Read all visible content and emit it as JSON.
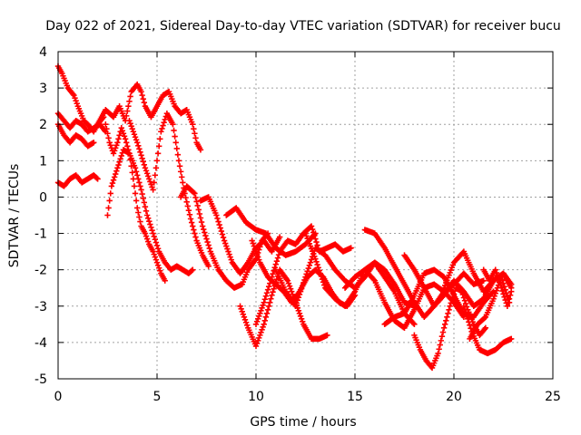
{
  "chart_data": {
    "type": "scatter",
    "title": "Day 022 of 2021, Sidereal Day-to-day VTEC variation (SDTVAR) for receiver bucu",
    "xlabel": "GPS time / hours",
    "ylabel": "SDTVAR / TECUs",
    "xlim": [
      0,
      25
    ],
    "ylim": [
      -5,
      4
    ],
    "x_ticks": [
      0,
      5,
      10,
      15,
      20,
      25
    ],
    "y_ticks": [
      -5,
      -4,
      -3,
      -2,
      -1,
      0,
      1,
      2,
      3,
      4
    ],
    "x_tick_labels": [
      "0",
      "5",
      "10",
      "15",
      "20",
      "25"
    ],
    "y_tick_labels": [
      "-5",
      "-4",
      "-3",
      "-2",
      "-1",
      "0",
      "1",
      "2",
      "3",
      "4"
    ],
    "grid": true,
    "marker": "plus",
    "color": "#ff0000",
    "series": [
      {
        "x": [
          0.0,
          0.2,
          0.5,
          0.8,
          1.0,
          1.3,
          1.5,
          1.8,
          2.0,
          2.3
        ],
        "y": [
          3.6,
          3.4,
          3.0,
          2.8,
          2.5,
          2.1,
          2.0,
          1.8,
          2.0,
          2.2
        ]
      },
      {
        "x": [
          0.0,
          0.3,
          0.6,
          0.9,
          1.2,
          1.5,
          1.8,
          2.1,
          2.4
        ],
        "y": [
          2.3,
          2.1,
          1.9,
          2.1,
          2.0,
          1.8,
          1.9,
          2.0,
          1.8
        ]
      },
      {
        "x": [
          0.0,
          0.3,
          0.6,
          0.9,
          1.2,
          1.5,
          1.8
        ],
        "y": [
          2.0,
          1.7,
          1.5,
          1.7,
          1.6,
          1.4,
          1.5
        ]
      },
      {
        "x": [
          0.0,
          0.3,
          0.6,
          0.9,
          1.2,
          1.5,
          1.8,
          2.0
        ],
        "y": [
          0.4,
          0.3,
          0.5,
          0.6,
          0.4,
          0.5,
          0.6,
          0.5
        ]
      },
      {
        "x": [
          2.0,
          2.4,
          2.8,
          3.1,
          3.4,
          3.7,
          4.0,
          4.2,
          4.4,
          4.7,
          5.0,
          5.3,
          5.6,
          5.9,
          6.2,
          6.5,
          6.8,
          7.0,
          7.2
        ],
        "y": [
          2.0,
          2.4,
          2.2,
          2.5,
          2.1,
          2.9,
          3.1,
          2.9,
          2.5,
          2.2,
          2.5,
          2.8,
          2.9,
          2.5,
          2.3,
          2.4,
          2.0,
          1.5,
          1.3
        ]
      },
      {
        "x": [
          2.4,
          2.6,
          2.8,
          3.0,
          3.2,
          3.4,
          3.6,
          3.8,
          4.0,
          4.2,
          4.4,
          4.6,
          4.8,
          5.0,
          5.2,
          5.4
        ],
        "y": [
          2.0,
          1.5,
          1.2,
          1.5,
          1.9,
          1.6,
          1.2,
          0.5,
          -0.3,
          -0.8,
          -1.0,
          -1.3,
          -1.5,
          -1.8,
          -2.1,
          -2.3
        ]
      },
      {
        "x": [
          2.5,
          2.7,
          3.0,
          3.3,
          3.6,
          3.9,
          4.2,
          4.5,
          4.8,
          5.1,
          5.4,
          5.7,
          6.0,
          6.3,
          6.6,
          6.8
        ],
        "y": [
          -0.5,
          0.3,
          0.8,
          1.3,
          1.2,
          0.8,
          0.2,
          -0.5,
          -1.0,
          -1.5,
          -1.8,
          -2.0,
          -1.9,
          -2.0,
          -2.1,
          -2.0
        ]
      },
      {
        "x": [
          3.6,
          4.0,
          4.4,
          4.8,
          5.2,
          5.5,
          5.8,
          6.1,
          6.4,
          6.7,
          7.0,
          7.3,
          7.6
        ],
        "y": [
          2.1,
          1.5,
          0.8,
          0.2,
          1.8,
          2.3,
          2.0,
          1.0,
          0.1,
          -0.6,
          -1.2,
          -1.6,
          -1.9
        ]
      },
      {
        "x": [
          6.2,
          6.5,
          6.9,
          7.3,
          7.7,
          8.1,
          8.5,
          8.9,
          9.3,
          9.6,
          10.0,
          10.3,
          10.6
        ],
        "y": [
          0.0,
          0.3,
          0.1,
          -0.8,
          -1.5,
          -2.0,
          -2.3,
          -2.5,
          -2.4,
          -2.0,
          -1.7,
          -1.2,
          -1.0
        ]
      },
      {
        "x": [
          7.2,
          7.6,
          8.0,
          8.4,
          8.8,
          9.2,
          9.6,
          10.0,
          10.4,
          10.8,
          11.2
        ],
        "y": [
          -0.1,
          0.0,
          -0.5,
          -1.2,
          -1.8,
          -2.1,
          -1.8,
          -1.4,
          -1.2,
          -1.5,
          -1.1
        ]
      },
      {
        "x": [
          8.5,
          9.0,
          9.5,
          10.0,
          10.5,
          11.0,
          11.5,
          12.0,
          12.5,
          13.0
        ],
        "y": [
          -0.5,
          -0.3,
          -0.7,
          -0.9,
          -1.0,
          -1.4,
          -1.6,
          -1.5,
          -1.3,
          -1.0
        ]
      },
      {
        "x": [
          9.2,
          9.6,
          10.0,
          10.4,
          10.8,
          11.2,
          11.6,
          12.0,
          12.4,
          12.8,
          13.2,
          13.6
        ],
        "y": [
          -3.0,
          -3.6,
          -4.1,
          -3.5,
          -2.7,
          -2.0,
          -2.3,
          -2.9,
          -3.5,
          -3.9,
          -3.9,
          -3.8
        ]
      },
      {
        "x": [
          9.8,
          10.2,
          10.6,
          11.0,
          11.4,
          11.8,
          12.2,
          12.6,
          13.0,
          13.4,
          13.8,
          14.2,
          14.6,
          15.0
        ],
        "y": [
          -1.2,
          -1.8,
          -2.2,
          -2.4,
          -2.6,
          -2.9,
          -2.6,
          -2.2,
          -2.0,
          -2.2,
          -2.6,
          -2.9,
          -3.0,
          -2.7
        ]
      },
      {
        "x": [
          10.0,
          10.4,
          10.8,
          11.2,
          11.6,
          12.0,
          12.4,
          12.8,
          13.2,
          13.6,
          14.0,
          14.4,
          14.8
        ],
        "y": [
          -3.5,
          -2.9,
          -2.2,
          -1.5,
          -1.2,
          -1.3,
          -1.0,
          -0.8,
          -1.5,
          -1.4,
          -1.3,
          -1.5,
          -1.4
        ]
      },
      {
        "x": [
          11.0,
          11.5,
          12.0,
          12.5,
          13.0,
          13.5,
          14.0,
          14.5,
          15.0,
          15.5,
          16.0,
          16.5,
          17.0,
          17.5,
          18.0
        ],
        "y": [
          -2.0,
          -2.6,
          -3.0,
          -2.2,
          -1.4,
          -1.6,
          -2.0,
          -2.3,
          -2.5,
          -2.2,
          -1.8,
          -2.0,
          -2.4,
          -2.9,
          -3.0
        ]
      },
      {
        "x": [
          12.5,
          13.0,
          13.5,
          14.0,
          14.5,
          15.0,
          15.5,
          16.0,
          16.5,
          17.0,
          17.5,
          18.0
        ],
        "y": [
          -1.0,
          -1.7,
          -2.5,
          -2.8,
          -3.0,
          -2.6,
          -2.0,
          -1.8,
          -2.2,
          -2.6,
          -3.2,
          -3.5
        ]
      },
      {
        "x": [
          14.5,
          15.0,
          15.5,
          16.0,
          16.5,
          17.0,
          17.5,
          18.0,
          18.5,
          19.0,
          19.5,
          20.0,
          20.5
        ],
        "y": [
          -2.5,
          -2.2,
          -2.0,
          -2.3,
          -2.9,
          -3.4,
          -3.6,
          -3.1,
          -2.5,
          -2.4,
          -2.6,
          -2.9,
          -3.3
        ]
      },
      {
        "x": [
          15.5,
          16.0,
          16.5,
          17.0,
          17.5,
          18.0,
          18.5,
          19.0,
          19.5,
          20.0,
          20.5,
          21.0,
          21.5
        ],
        "y": [
          -0.9,
          -1.0,
          -1.4,
          -1.9,
          -2.4,
          -2.9,
          -3.3,
          -3.0,
          -2.6,
          -2.4,
          -2.1,
          -2.4,
          -2.3
        ]
      },
      {
        "x": [
          16.5,
          17.0,
          17.5,
          18.0,
          18.5,
          19.0,
          19.5,
          20.0,
          20.5,
          21.0,
          21.5,
          22.0
        ],
        "y": [
          -3.5,
          -3.3,
          -3.2,
          -2.7,
          -2.1,
          -2.0,
          -2.2,
          -2.7,
          -3.2,
          -3.3,
          -2.9,
          -2.6
        ]
      },
      {
        "x": [
          18.0,
          18.3,
          18.6,
          18.9,
          19.2,
          19.5,
          19.8,
          20.1,
          20.4,
          20.7,
          21.0,
          21.3,
          21.6
        ],
        "y": [
          -3.8,
          -4.2,
          -4.5,
          -4.7,
          -4.3,
          -3.6,
          -3.0,
          -2.5,
          -2.6,
          -3.1,
          -3.5,
          -3.8,
          -3.6
        ]
      },
      {
        "x": [
          17.5,
          18.0,
          18.5,
          19.0,
          19.5,
          20.0,
          20.5,
          21.0,
          21.5,
          22.0,
          22.5,
          22.9
        ],
        "y": [
          -1.6,
          -2.0,
          -2.5,
          -3.0,
          -2.7,
          -2.3,
          -2.6,
          -3.0,
          -2.8,
          -2.3,
          -2.1,
          -2.4
        ]
      },
      {
        "x": [
          19.5,
          20.0,
          20.5,
          21.0,
          21.5,
          22.0,
          22.5,
          22.9
        ],
        "y": [
          -2.5,
          -1.8,
          -1.5,
          -2.1,
          -2.6,
          -2.3,
          -2.1,
          -2.5
        ]
      },
      {
        "x": [
          20.5,
          20.9,
          21.3,
          21.7,
          22.1,
          22.5,
          22.9
        ],
        "y": [
          -3.0,
          -3.7,
          -4.2,
          -4.3,
          -4.2,
          -4.0,
          -3.9
        ]
      },
      {
        "x": [
          20.8,
          21.2,
          21.6,
          22.0,
          22.4,
          22.8
        ],
        "y": [
          -3.9,
          -3.5,
          -3.3,
          -2.8,
          -2.2,
          -2.9
        ]
      },
      {
        "x": [
          21.5,
          21.8,
          22.1,
          22.4,
          22.7,
          22.9
        ],
        "y": [
          -2.0,
          -2.3,
          -2.0,
          -2.5,
          -3.0,
          -2.6
        ]
      }
    ]
  }
}
